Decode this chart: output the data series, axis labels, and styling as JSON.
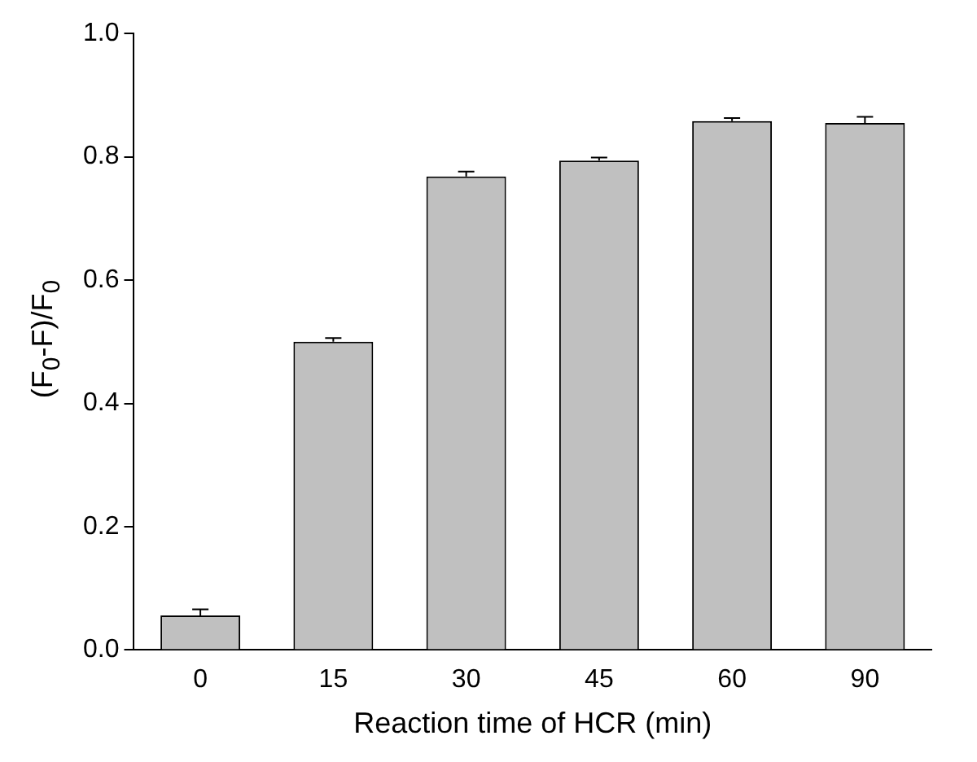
{
  "chart_data": {
    "type": "bar",
    "xlabel": "Reaction time of HCR (min)",
    "ylabel": "(F$_{0}$-F)/F$_{0}$",
    "categories": [
      "0",
      "15",
      "30",
      "45",
      "60",
      "90"
    ],
    "values": [
      0.056,
      0.5,
      0.768,
      0.794,
      0.858,
      0.855
    ],
    "errors": [
      0.01,
      0.006,
      0.008,
      0.005,
      0.005,
      0.01
    ],
    "color": "#c0c0c0",
    "ylim": [
      0,
      1
    ],
    "yticks": [
      {
        "value": 0,
        "label": "0.0"
      },
      {
        "value": 0.2,
        "label": "0.2"
      },
      {
        "value": 0.4,
        "label": "0.4"
      },
      {
        "value": 0.6,
        "label": "0.6"
      },
      {
        "value": 0.8,
        "label": "0.8"
      },
      {
        "value": 1,
        "label": "1.0"
      }
    ],
    "grid": false,
    "legend": false
  }
}
